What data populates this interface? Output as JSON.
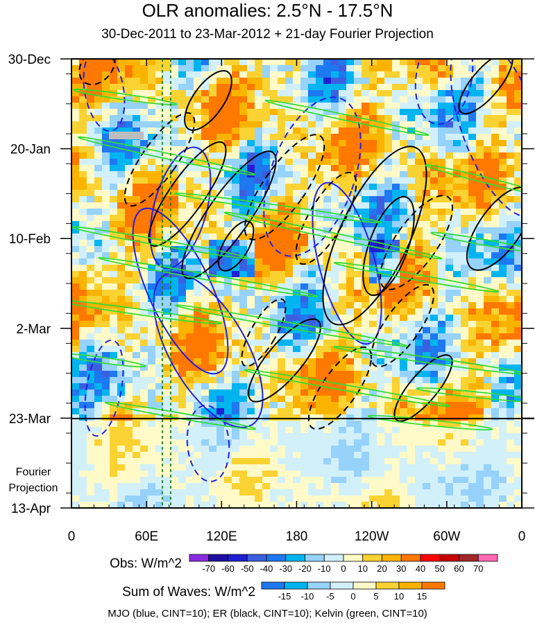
{
  "chart_data": {
    "type": "heatmap",
    "title": "OLR anomalies: 2.5°N - 17.5°N",
    "subtitle": "30-Dec-2011 to 23-Mar-2012 + 21-day Fourier Projection",
    "x_ticks": [
      "0",
      "60E",
      "120E",
      "180",
      "120W",
      "60W",
      "0"
    ],
    "y_ticks": [
      "30-Dec",
      "20-Jan",
      "10-Feb",
      "2-Mar",
      "23-Mar",
      "13-Apr"
    ],
    "projection_label": [
      "Fourier",
      "Projection"
    ],
    "obs_colorbar": {
      "label": "Obs: W/m^2",
      "levels": [
        "-70",
        "-60",
        "-50",
        "-40",
        "-30",
        "-20",
        "-10",
        "0",
        "10",
        "20",
        "30",
        "40",
        "50",
        "60",
        "70"
      ],
      "colors": [
        "#8a2be2",
        "#1e0fa0",
        "#2020d0",
        "#3c5fe0",
        "#1e78f0",
        "#00b4f0",
        "#96d2fa",
        "#d2f0fa",
        "#fffac8",
        "#fad232",
        "#fab400",
        "#ff7800",
        "#ff0000",
        "#c80000",
        "#a02828",
        "#ff69b4"
      ]
    },
    "waves_colorbar": {
      "label": "Sum of Waves: W/m^2",
      "levels": [
        "-15",
        "-10",
        "-5",
        "0",
        "5",
        "10",
        "15"
      ],
      "colors": [
        "#1e78f0",
        "#00b4f0",
        "#96d2fa",
        "#d2f0fa",
        "#fffac8",
        "#fad232",
        "#fab400",
        "#ff7800"
      ]
    },
    "legend_note": "MJO (blue, CINT=10); ER (black, CINT=10); Kelvin (green, CINT=10)",
    "contour_colors": {
      "mjo": "#1e1ee6",
      "er": "#000000",
      "kelvin": "#32dc32"
    }
  }
}
